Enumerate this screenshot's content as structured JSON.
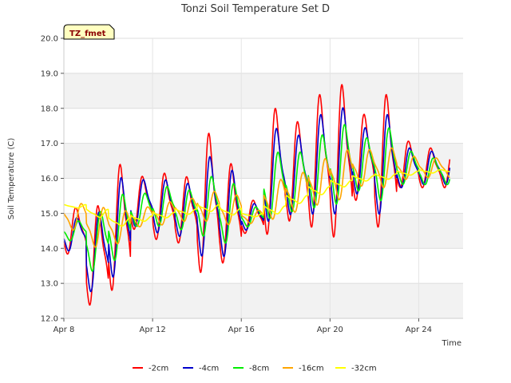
{
  "chart_data": {
    "type": "line",
    "title": "Tonzi Soil Temperature Set D",
    "xlabel": "Time",
    "ylabel": "Soil Temperature (C)",
    "badge": "TZ_fmet",
    "ylim": [
      12.0,
      20.0
    ],
    "yticks": [
      "12.0",
      "13.0",
      "14.0",
      "15.0",
      "16.0",
      "17.0",
      "18.0",
      "19.0",
      "20.0"
    ],
    "xlim": [
      8,
      26
    ],
    "xticks": [
      {
        "value": 8,
        "label": "Apr 8"
      },
      {
        "value": 12,
        "label": "Apr 12"
      },
      {
        "value": 16,
        "label": "Apr 16"
      },
      {
        "value": 20,
        "label": "Apr 20"
      },
      {
        "value": 24,
        "label": "Apr 24"
      }
    ],
    "grid": true,
    "legend_position": "bottom",
    "series": [
      {
        "name": "-2cm",
        "color": "#ff0000",
        "mean": [
          14.5,
          13.8,
          14.6,
          15.3,
          15.2,
          15.1,
          15.3,
          15.0,
          14.9,
          16.2,
          16.2,
          16.5,
          16.5,
          16.6,
          16.5,
          16.4,
          16.3
        ],
        "amp": [
          0.7,
          1.5,
          1.9,
          0.8,
          1.0,
          1.0,
          2.1,
          1.5,
          0.5,
          1.9,
          1.5,
          2.0,
          2.3,
          1.3,
          2.0,
          0.7,
          0.6
        ],
        "phase_lag": 0.0
      },
      {
        "name": "-4cm",
        "color": "#0000cc",
        "mean": [
          14.4,
          13.9,
          14.6,
          15.3,
          15.2,
          15.1,
          15.2,
          15.0,
          14.9,
          16.1,
          16.1,
          16.4,
          16.5,
          16.5,
          16.4,
          16.3,
          16.3
        ],
        "amp": [
          0.5,
          1.2,
          1.5,
          0.7,
          0.8,
          0.8,
          1.5,
          1.3,
          0.4,
          1.4,
          1.2,
          1.5,
          1.6,
          1.0,
          1.5,
          0.6,
          0.5
        ],
        "phase_lag": 0.05
      },
      {
        "name": "-8cm",
        "color": "#00ee00",
        "mean": [
          14.5,
          14.2,
          14.6,
          15.1,
          15.2,
          15.1,
          15.2,
          15.0,
          14.9,
          15.8,
          15.9,
          16.2,
          16.4,
          16.4,
          16.4,
          16.3,
          16.2
        ],
        "amp": [
          0.3,
          0.9,
          1.0,
          0.5,
          0.6,
          0.6,
          0.9,
          0.9,
          0.3,
          1.0,
          0.9,
          1.1,
          1.2,
          0.8,
          1.1,
          0.5,
          0.4
        ],
        "phase_lag": 0.12
      },
      {
        "name": "-16cm",
        "color": "#ffa500",
        "mean": [
          14.9,
          14.6,
          14.6,
          14.9,
          15.0,
          15.1,
          15.2,
          15.1,
          14.9,
          15.4,
          15.6,
          15.9,
          16.1,
          16.3,
          16.3,
          16.3,
          16.3
        ],
        "amp": [
          0.4,
          0.6,
          0.5,
          0.3,
          0.35,
          0.35,
          0.45,
          0.45,
          0.2,
          0.6,
          0.6,
          0.7,
          0.75,
          0.55,
          0.6,
          0.35,
          0.3
        ],
        "phase_lag": 0.25
      },
      {
        "name": "-32cm",
        "color": "#ffff00",
        "mean": [
          15.2,
          15.0,
          14.75,
          14.85,
          14.95,
          15.05,
          15.15,
          15.05,
          14.95,
          15.1,
          15.4,
          15.65,
          15.85,
          16.0,
          16.05,
          16.15,
          16.2
        ],
        "amp": [
          0.05,
          0.12,
          0.12,
          0.08,
          0.08,
          0.08,
          0.1,
          0.1,
          0.05,
          0.12,
          0.12,
          0.12,
          0.1,
          0.08,
          0.08,
          0.06,
          0.05
        ],
        "phase_lag": 0.45
      }
    ]
  }
}
